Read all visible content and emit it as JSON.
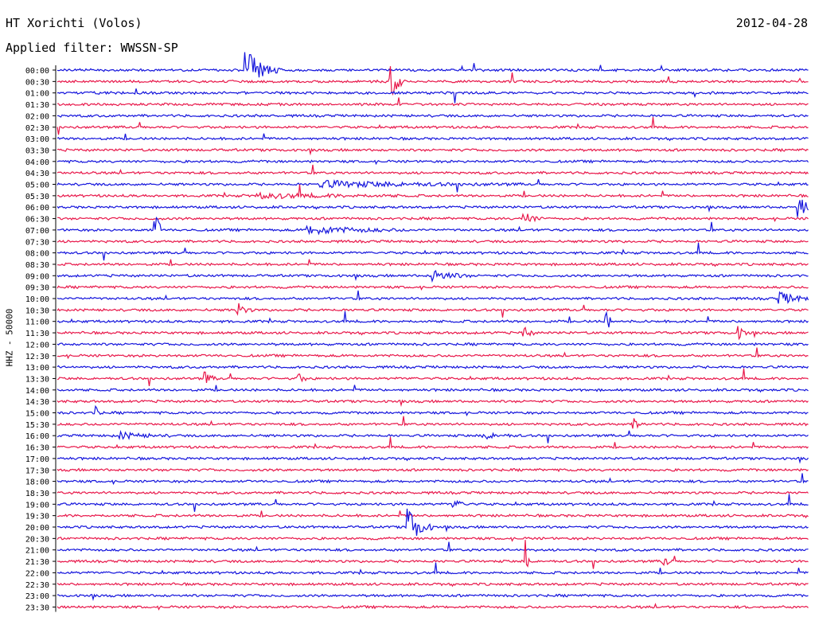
{
  "header": {
    "station": "HT Xorichti (Volos)",
    "date": "2012-04-28",
    "filter_label": "Applied filter:",
    "filter_name": "WWSSN-SP"
  },
  "channel_label": "HHZ - 50000",
  "colors": {
    "even_rows": "#1414dc",
    "odd_rows": "#e8174a"
  },
  "chart_data": {
    "type": "line",
    "subtype": "helicorder",
    "title": "HT Xorichti (Volos)",
    "date": "2012-04-28",
    "filter": "WWSSN-SP",
    "channel": "HHZ - 50000",
    "rows": [
      "00:00",
      "00:30",
      "01:00",
      "01:30",
      "02:00",
      "02:30",
      "03:00",
      "03:30",
      "04:00",
      "04:30",
      "05:00",
      "05:30",
      "06:00",
      "06:30",
      "07:00",
      "07:30",
      "08:00",
      "08:30",
      "09:00",
      "09:30",
      "10:00",
      "10:30",
      "11:00",
      "11:30",
      "12:00",
      "12:30",
      "13:00",
      "13:30",
      "14:00",
      "14:30",
      "15:00",
      "15:30",
      "16:00",
      "16:30",
      "17:00",
      "17:30",
      "18:00",
      "18:30",
      "19:00",
      "19:30",
      "20:00",
      "20:30",
      "21:00",
      "21:30",
      "22:00",
      "22:30",
      "23:00",
      "23:30"
    ],
    "row_duration_minutes": 30,
    "row_colors": [
      "blue",
      "red"
    ],
    "events": [
      {
        "row": "00:00",
        "minute": 7.5,
        "amplitude": 1.0,
        "duration": 1.5
      },
      {
        "row": "00:30",
        "minute": 13.3,
        "amplitude": 0.9,
        "duration": 0.6
      },
      {
        "row": "05:00",
        "minute": 10.5,
        "amplitude": 0.15,
        "duration": 8.0
      },
      {
        "row": "05:30",
        "minute": 8.0,
        "amplitude": 0.12,
        "duration": 6.0
      },
      {
        "row": "06:00",
        "minute": 29.6,
        "amplitude": 0.6,
        "duration": 1.0
      },
      {
        "row": "06:30",
        "minute": 18.6,
        "amplitude": 0.35,
        "duration": 0.8
      },
      {
        "row": "07:00",
        "minute": 3.9,
        "amplitude": 1.0,
        "duration": 0.2
      },
      {
        "row": "07:00",
        "minute": 10.0,
        "amplitude": 0.2,
        "duration": 4.0
      },
      {
        "row": "09:00",
        "minute": 15.0,
        "amplitude": 0.3,
        "duration": 1.5
      },
      {
        "row": "10:00",
        "minute": 28.8,
        "amplitude": 0.3,
        "duration": 1.5
      },
      {
        "row": "10:30",
        "minute": 7.2,
        "amplitude": 0.35,
        "duration": 0.6
      },
      {
        "row": "11:00",
        "minute": 21.9,
        "amplitude": 0.6,
        "duration": 0.3
      },
      {
        "row": "11:30",
        "minute": 18.6,
        "amplitude": 0.35,
        "duration": 0.5
      },
      {
        "row": "11:30",
        "minute": 27.2,
        "amplitude": 0.3,
        "duration": 0.5
      },
      {
        "row": "13:30",
        "minute": 5.9,
        "amplitude": 0.3,
        "duration": 0.5
      },
      {
        "row": "13:30",
        "minute": 9.6,
        "amplitude": 0.25,
        "duration": 0.5
      },
      {
        "row": "15:00",
        "minute": 1.5,
        "amplitude": 0.35,
        "duration": 0.3
      },
      {
        "row": "15:30",
        "minute": 23.0,
        "amplitude": 0.25,
        "duration": 0.5
      },
      {
        "row": "16:00",
        "minute": 2.5,
        "amplitude": 0.15,
        "duration": 2.0
      },
      {
        "row": "16:00",
        "minute": 17.0,
        "amplitude": 0.15,
        "duration": 1.5
      },
      {
        "row": "19:00",
        "minute": 15.8,
        "amplitude": 0.2,
        "duration": 0.8
      },
      {
        "row": "20:00",
        "minute": 14.0,
        "amplitude": 1.0,
        "duration": 1.0
      },
      {
        "row": "21:30",
        "minute": 18.7,
        "amplitude": 1.0,
        "duration": 0.2
      },
      {
        "row": "21:30",
        "minute": 24.2,
        "amplitude": 0.3,
        "duration": 0.5
      }
    ]
  }
}
